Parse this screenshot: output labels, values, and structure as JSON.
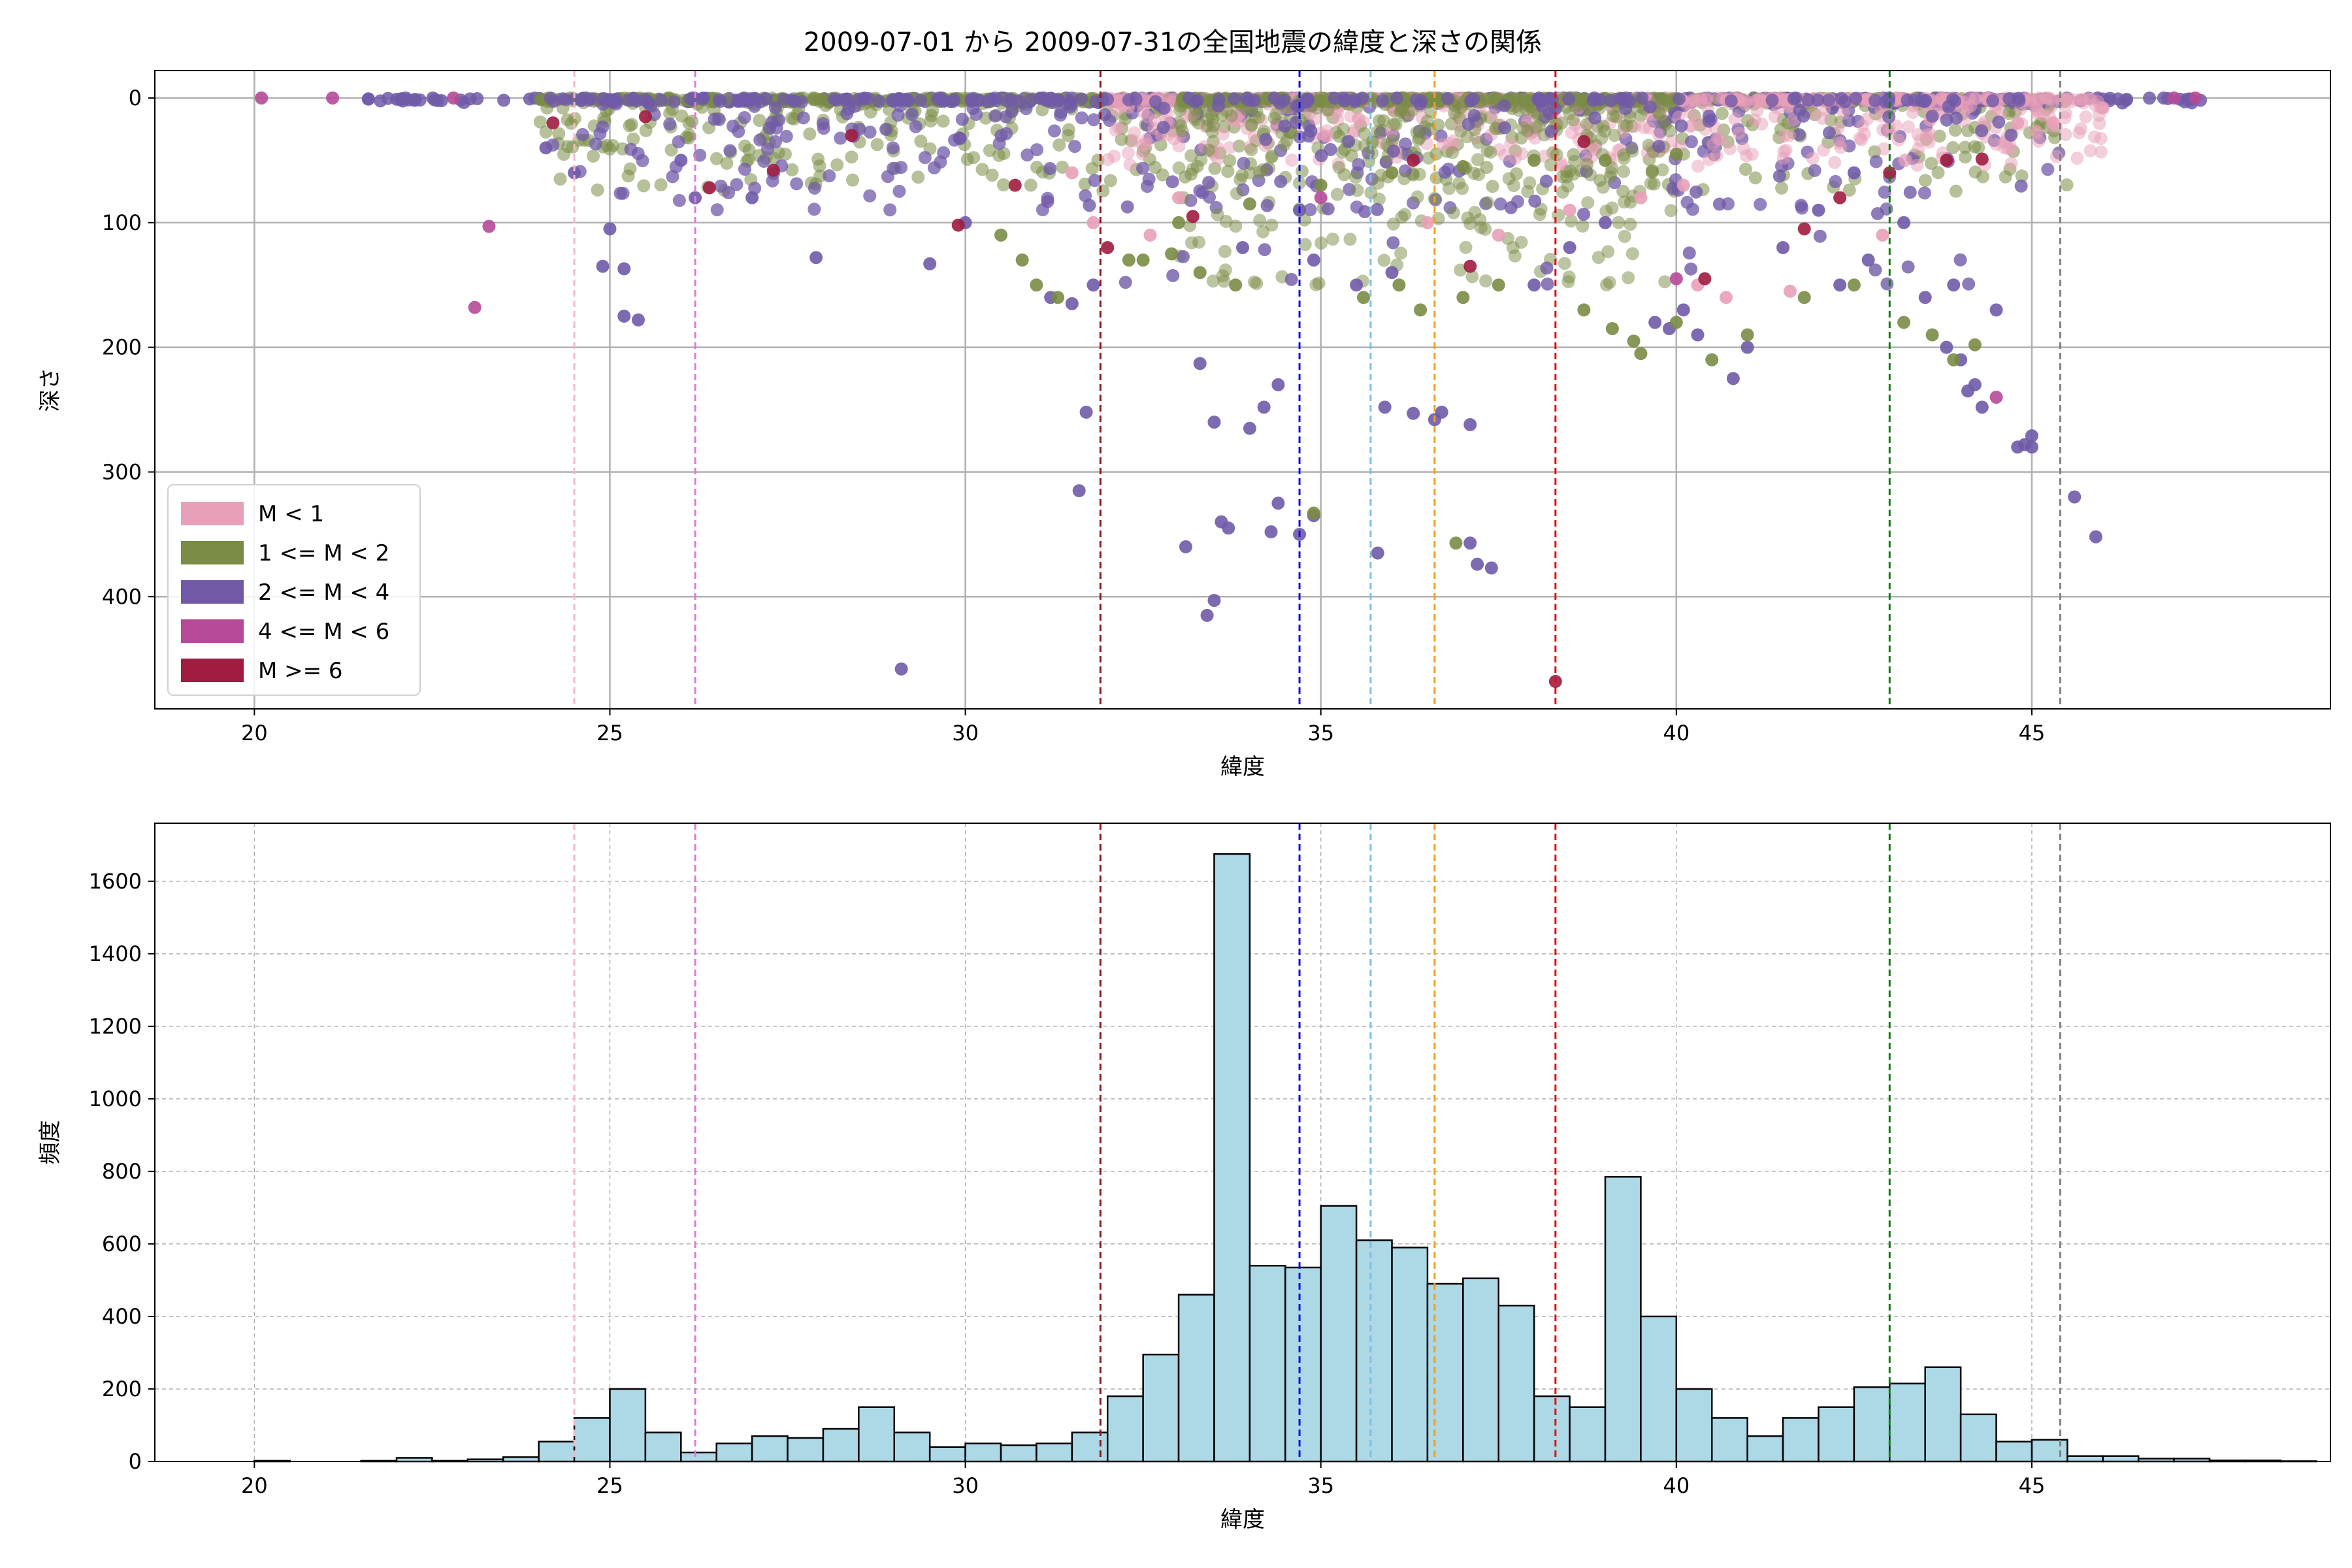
{
  "chart_data": [
    {
      "type": "scatter",
      "title": "2009-07-01 から 2009-07-31の全国地震の緯度と深さの関係",
      "xlabel": "緯度",
      "ylabel": "深さ",
      "xlim": [
        18.6,
        49.2
      ],
      "ylim": [
        490,
        -22
      ],
      "y_inverted": true,
      "xticks": [
        20,
        25,
        30,
        35,
        40,
        45
      ],
      "yticks": [
        0,
        100,
        200,
        300,
        400
      ],
      "grid": true,
      "legend": {
        "placement": "lower-left",
        "entries": [
          {
            "label": "M < 1",
            "color": "#e8a0b8"
          },
          {
            "label": "1 <= M < 2",
            "color": "#7a8c45"
          },
          {
            "label": "2 <= M < 4",
            "color": "#705aa8"
          },
          {
            "label": "4 <= M < 6",
            "color": "#b64a98"
          },
          {
            "label": "M >= 6",
            "color": "#a01c40"
          }
        ]
      },
      "vlines": [
        {
          "x": 24.5,
          "color": "#f5b8c8"
        },
        {
          "x": 26.2,
          "color": "#e07ad8"
        },
        {
          "x": 31.9,
          "color": "#8b1a1a"
        },
        {
          "x": 34.7,
          "color": "#1010e0"
        },
        {
          "x": 35.7,
          "color": "#7ec0e0"
        },
        {
          "x": 36.6,
          "color": "#f0a020"
        },
        {
          "x": 38.3,
          "color": "#e01010"
        },
        {
          "x": 43.0,
          "color": "#108010"
        },
        {
          "x": 45.4,
          "color": "#808080"
        }
      ],
      "series": [
        {
          "color": "#705aa8",
          "points": [
            [
              33.3,
              213
            ],
            [
              33.5,
              260
            ],
            [
              34.0,
              265
            ],
            [
              34.2,
              248
            ],
            [
              34.4,
              230
            ],
            [
              34.7,
              90
            ],
            [
              34.4,
              325
            ],
            [
              34.7,
              350
            ],
            [
              34.3,
              348
            ],
            [
              33.7,
              345
            ],
            [
              33.6,
              340
            ],
            [
              33.1,
              360
            ],
            [
              33.5,
              403
            ],
            [
              33.4,
              415
            ],
            [
              34.9,
              335
            ],
            [
              35.8,
              365
            ],
            [
              35.9,
              248
            ],
            [
              36.3,
              253
            ],
            [
              36.7,
              252
            ],
            [
              36.6,
              258
            ],
            [
              37.1,
              262
            ],
            [
              37.2,
              374
            ],
            [
              37.4,
              377
            ],
            [
              37.1,
              357
            ],
            [
              29.1,
              458
            ],
            [
              31.7,
              252
            ],
            [
              31.6,
              315
            ],
            [
              33.9,
              120
            ],
            [
              34.9,
              130
            ],
            [
              35.5,
              150
            ],
            [
              36.0,
              140
            ],
            [
              44.1,
              235
            ],
            [
              44.3,
              248
            ],
            [
              44.8,
              280
            ],
            [
              44.9,
              278
            ],
            [
              45.0,
              271
            ],
            [
              45.0,
              280
            ],
            [
              45.6,
              320
            ],
            [
              45.9,
              352
            ],
            [
              42.3,
              150
            ],
            [
              42.7,
              130
            ],
            [
              43.2,
              100
            ],
            [
              43.5,
              160
            ],
            [
              43.8,
              200
            ],
            [
              44.0,
              210
            ],
            [
              44.2,
              230
            ],
            [
              43.9,
              150
            ],
            [
              44.5,
              170
            ],
            [
              25.2,
              137
            ],
            [
              25.2,
              175
            ],
            [
              25.4,
              178
            ],
            [
              24.9,
              135
            ],
            [
              25.0,
              105
            ],
            [
              24.1,
              40
            ],
            [
              24.5,
              60
            ],
            [
              26.0,
              50
            ],
            [
              26.2,
              80
            ],
            [
              27.0,
              80
            ],
            [
              27.9,
              128
            ],
            [
              29.5,
              133
            ],
            [
              30.0,
              100
            ],
            [
              31.2,
              160
            ],
            [
              31.5,
              165
            ],
            [
              31.8,
              150
            ],
            [
              39.7,
              180
            ],
            [
              39.9,
              185
            ],
            [
              40.1,
              170
            ],
            [
              40.3,
              190
            ],
            [
              40.8,
              225
            ],
            [
              41.0,
              200
            ],
            [
              41.5,
              120
            ],
            [
              42.0,
              90
            ],
            [
              42.5,
              60
            ],
            [
              38.0,
              150
            ],
            [
              38.5,
              120
            ],
            [
              39.0,
              100
            ]
          ]
        },
        {
          "color": "#7a8c45",
          "points": [
            [
              32.3,
              130
            ],
            [
              32.5,
              130
            ],
            [
              32.9,
              125
            ],
            [
              33.3,
              140
            ],
            [
              33.8,
              150
            ],
            [
              34.9,
              333
            ],
            [
              36.9,
              357
            ],
            [
              35.6,
              160
            ],
            [
              36.1,
              150
            ],
            [
              36.4,
              170
            ],
            [
              37.0,
              160
            ],
            [
              37.5,
              150
            ],
            [
              39.4,
              195
            ],
            [
              39.5,
              205
            ],
            [
              40.5,
              210
            ],
            [
              41.8,
              160
            ],
            [
              42.5,
              150
            ],
            [
              43.2,
              180
            ],
            [
              43.6,
              190
            ],
            [
              43.9,
              210
            ],
            [
              44.2,
              198
            ],
            [
              31.0,
              150
            ],
            [
              31.3,
              160
            ],
            [
              30.8,
              130
            ],
            [
              30.5,
              110
            ],
            [
              38.7,
              170
            ],
            [
              39.1,
              185
            ],
            [
              40.0,
              180
            ],
            [
              41.0,
              190
            ],
            [
              33.0,
              100
            ],
            [
              34.0,
              85
            ],
            [
              35.0,
              70
            ],
            [
              36.0,
              60
            ],
            [
              37.0,
              55
            ],
            [
              38.0,
              50
            ],
            [
              39.0,
              50
            ],
            [
              40.0,
              45
            ]
          ]
        },
        {
          "color": "#e8a0b8",
          "points": [
            [
              40.3,
              150
            ],
            [
              40.7,
              160
            ],
            [
              41.6,
              155
            ],
            [
              42.9,
              110
            ],
            [
              31.5,
              60
            ],
            [
              31.8,
              100
            ],
            [
              32.6,
              110
            ],
            [
              33.0,
              80
            ],
            [
              36.5,
              100
            ],
            [
              37.5,
              110
            ],
            [
              38.5,
              90
            ],
            [
              39.5,
              80
            ],
            [
              40.1,
              70
            ],
            [
              44.8,
              20
            ],
            [
              45.3,
              20
            ],
            [
              46.0,
              8
            ]
          ]
        },
        {
          "color": "#b64a98",
          "points": [
            [
              20.1,
              0
            ],
            [
              21.1,
              0
            ],
            [
              22.8,
              0
            ],
            [
              23.1,
              168
            ],
            [
              23.3,
              103
            ],
            [
              47.0,
              0
            ],
            [
              47.3,
              0
            ],
            [
              44.5,
              240
            ],
            [
              40.0,
              145
            ],
            [
              35.0,
              80
            ]
          ]
        },
        {
          "color": "#a01c40",
          "points": [
            [
              26.4,
              72
            ],
            [
              27.3,
              58
            ],
            [
              28.4,
              30
            ],
            [
              29.9,
              102
            ],
            [
              30.7,
              70
            ],
            [
              32.0,
              120
            ],
            [
              33.2,
              95
            ],
            [
              36.3,
              50
            ],
            [
              37.1,
              135
            ],
            [
              38.3,
              468
            ],
            [
              38.7,
              35
            ],
            [
              40.4,
              145
            ],
            [
              41.8,
              105
            ],
            [
              42.3,
              80
            ],
            [
              43.0,
              60
            ],
            [
              43.8,
              50
            ],
            [
              44.3,
              49
            ],
            [
              24.2,
              20
            ],
            [
              25.5,
              15
            ]
          ]
        }
      ]
    },
    {
      "type": "bar",
      "xlabel": "緯度",
      "ylabel": "頻度",
      "xlim": [
        18.6,
        49.2
      ],
      "ylim": [
        0,
        1760
      ],
      "xticks": [
        20,
        25,
        30,
        35,
        40,
        45
      ],
      "yticks": [
        0,
        200,
        400,
        600,
        800,
        1000,
        1200,
        1400,
        1600
      ],
      "grid": true,
      "bar_color": "#add8e6",
      "bin_width": 0.5,
      "bin_start": 20.0,
      "values": [
        2,
        0,
        0,
        2,
        10,
        2,
        6,
        12,
        55,
        120,
        200,
        80,
        25,
        50,
        70,
        65,
        90,
        150,
        80,
        40,
        50,
        45,
        50,
        80,
        180,
        295,
        460,
        1675,
        540,
        535,
        705,
        610,
        590,
        490,
        505,
        430,
        180,
        150,
        785,
        400,
        200,
        120,
        70,
        120,
        150,
        205,
        215,
        260,
        130,
        55,
        60,
        15,
        15,
        8,
        8,
        3,
        3,
        1
      ],
      "vlines": [
        {
          "x": 24.5,
          "color": "#f5b8c8"
        },
        {
          "x": 26.2,
          "color": "#e07ad8"
        },
        {
          "x": 31.9,
          "color": "#8b1a1a"
        },
        {
          "x": 34.7,
          "color": "#1010e0"
        },
        {
          "x": 35.7,
          "color": "#7ec0e0"
        },
        {
          "x": 36.6,
          "color": "#f0a020"
        },
        {
          "x": 38.3,
          "color": "#e01010"
        },
        {
          "x": 43.0,
          "color": "#108010"
        },
        {
          "x": 45.4,
          "color": "#808080"
        }
      ]
    }
  ]
}
